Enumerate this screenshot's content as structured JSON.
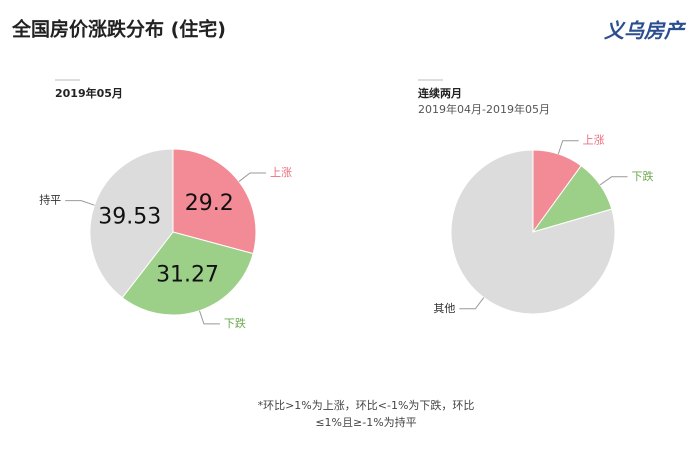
{
  "title": "全国房价涨跌分布 (住宅)",
  "logo": "义乌房产",
  "chart_data": [
    {
      "type": "pie",
      "title": "2019年05月",
      "categories": [
        "上涨",
        "下跌",
        "持平"
      ],
      "values": [
        29.2,
        31.27,
        39.53
      ],
      "colors": [
        "#f28b96",
        "#9ccf87",
        "#dcdcdc"
      ],
      "label_colors": [
        "#e8707e",
        "#6aaa4f",
        "#333333"
      ]
    },
    {
      "type": "pie",
      "title": "连续两月",
      "subtitle": "2019年04月-2019年05月",
      "categories": [
        "上涨",
        "下跌",
        "其他"
      ],
      "values": [
        10,
        10.5,
        79.5
      ],
      "colors": [
        "#f28b96",
        "#9ccf87",
        "#dcdcdc"
      ],
      "label_colors": [
        "#e8707e",
        "#6aaa4f",
        "#333333"
      ]
    }
  ],
  "footnote": [
    "*环比>1%为上涨，环比<-1%为下跌，环比",
    "≤1%且≥-1%为持平"
  ]
}
